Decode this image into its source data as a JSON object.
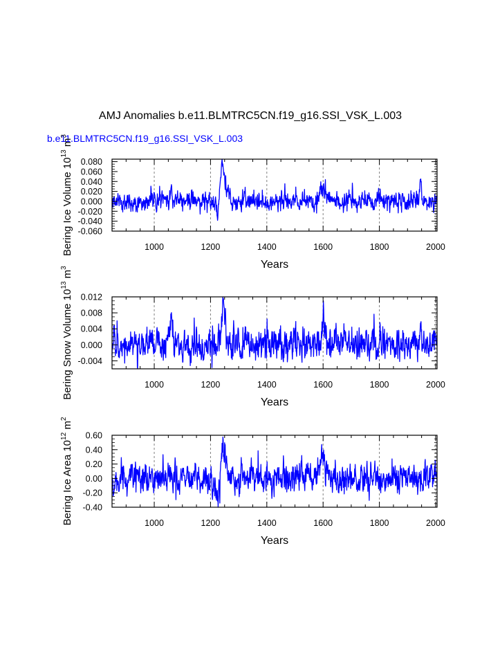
{
  "title": "AMJ Anomalies b.e11.BLMTRC5CN.f19_g16.SSI_VSK_L.003",
  "case_label": "b.e11.BLMTRC5CN.f19_g16.SSI_VSK_L.003",
  "colors": {
    "series": "#0000ff",
    "axes": "#000000",
    "grid": "#7f7f7f",
    "case_label": "#0000ff"
  },
  "chart_data": [
    {
      "type": "line",
      "ylabel": "Bering Ice Volume",
      "yunit_base": "10",
      "yunit_exp": "13",
      "yunit_tail": "m",
      "yunit_tail_exp": "3",
      "xlabel": "Years",
      "xlim": [
        850,
        2005
      ],
      "ylim": [
        -0.06,
        0.085
      ],
      "xticks": [
        1000,
        1200,
        1400,
        1600,
        1800,
        2000
      ],
      "xtick_labels": [
        "1000",
        "1200",
        "1400",
        "1600",
        "1800",
        "2000"
      ],
      "yticks": [
        0.08,
        0.06,
        0.04,
        0.02,
        0.0,
        -0.02,
        -0.04,
        -0.06
      ],
      "ytick_labels": [
        "0.080",
        "0.060",
        "0.040",
        "0.020",
        "0.000",
        "-0.020",
        "-0.040",
        "-0.060"
      ],
      "grid_x": true,
      "seed": 11,
      "noise_sd": 0.011,
      "events": [
        [
          1240,
          8,
          0.045
        ],
        [
          1255,
          10,
          0.015
        ],
        [
          1595,
          15,
          0.012
        ],
        [
          1060,
          6,
          0.012
        ],
        [
          1945,
          4,
          0.025
        ],
        [
          1225,
          5,
          -0.02
        ]
      ],
      "series": [
        {
          "name": "Bering Ice Volume anomaly",
          "x_start": 850,
          "x_end": 2005
        }
      ]
    },
    {
      "type": "line",
      "ylabel": "Bering Snow Volume",
      "yunit_base": "10",
      "yunit_exp": "13",
      "yunit_tail": "m",
      "yunit_tail_exp": "3",
      "xlabel": "Years",
      "xlim": [
        850,
        2005
      ],
      "ylim": [
        -0.006,
        0.012
      ],
      "xticks": [
        1000,
        1200,
        1400,
        1600,
        1800,
        2000
      ],
      "xtick_labels": [
        "1000",
        "1200",
        "1400",
        "1600",
        "1800",
        "2000"
      ],
      "yticks": [
        0.012,
        0.008,
        0.004,
        0.0,
        -0.004
      ],
      "ytick_labels": [
        "0.012",
        "0.008",
        "0.004",
        "0.000",
        "-0.004"
      ],
      "grid_x": true,
      "seed": 23,
      "noise_sd": 0.0023,
      "events": [
        [
          1245,
          8,
          0.006
        ],
        [
          1060,
          5,
          0.004
        ],
        [
          1600,
          6,
          0.004
        ],
        [
          1945,
          4,
          0.005
        ]
      ],
      "series": [
        {
          "name": "Bering Snow Volume anomaly",
          "x_start": 850,
          "x_end": 2005
        }
      ]
    },
    {
      "type": "line",
      "ylabel": "Bering Ice Area",
      "yunit_base": "10",
      "yunit_exp": "12",
      "yunit_tail": "m",
      "yunit_tail_exp": "2",
      "xlabel": "Years",
      "xlim": [
        850,
        2005
      ],
      "ylim": [
        -0.4,
        0.6
      ],
      "xticks": [
        1000,
        1200,
        1400,
        1600,
        1800,
        2000
      ],
      "xtick_labels": [
        "1000",
        "1200",
        "1400",
        "1600",
        "1800",
        "2000"
      ],
      "yticks": [
        0.6,
        0.4,
        0.2,
        0.0,
        -0.2,
        -0.4
      ],
      "ytick_labels": [
        "0.60",
        "0.40",
        "0.20",
        "0.00",
        "-0.20",
        "-0.40"
      ],
      "grid_x": true,
      "seed": 37,
      "noise_sd": 0.12,
      "events": [
        [
          1245,
          10,
          0.28
        ],
        [
          1595,
          15,
          0.18
        ],
        [
          1225,
          5,
          -0.15
        ],
        [
          855,
          4,
          -0.15
        ]
      ],
      "series": [
        {
          "name": "Bering Ice Area anomaly",
          "x_start": 850,
          "x_end": 2005
        }
      ]
    }
  ]
}
